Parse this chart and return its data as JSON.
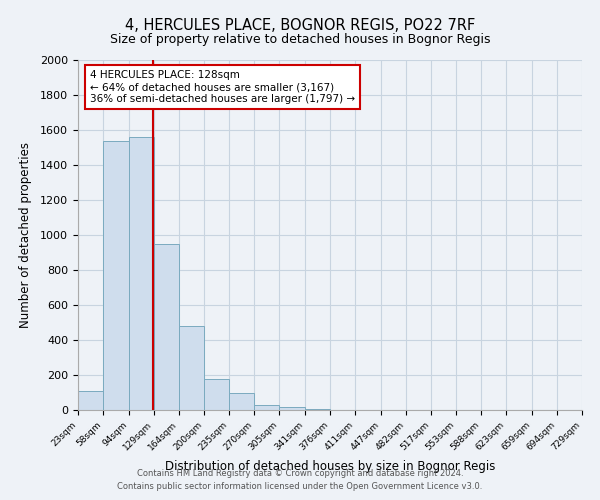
{
  "title": "4, HERCULES PLACE, BOGNOR REGIS, PO22 7RF",
  "subtitle": "Size of property relative to detached houses in Bognor Regis",
  "xlabel": "Distribution of detached houses by size in Bognor Regis",
  "ylabel": "Number of detached properties",
  "bar_edges": [
    23,
    58,
    94,
    129,
    164,
    200,
    235,
    270,
    305,
    341,
    376,
    411,
    447,
    482,
    517,
    553,
    588,
    623,
    659,
    694,
    729
  ],
  "bar_heights": [
    110,
    1540,
    1560,
    950,
    480,
    180,
    95,
    30,
    15,
    8,
    0,
    0,
    0,
    0,
    0,
    0,
    0,
    0,
    0,
    0
  ],
  "bar_color": "#cfdded",
  "bar_edge_color": "#7aaabf",
  "property_line_x": 128,
  "annotation_title": "4 HERCULES PLACE: 128sqm",
  "annotation_line1": "← 64% of detached houses are smaller (3,167)",
  "annotation_line2": "36% of semi-detached houses are larger (1,797) →",
  "annotation_box_color": "#ffffff",
  "annotation_box_edge_color": "#cc0000",
  "red_line_color": "#cc0000",
  "ylim": [
    0,
    2000
  ],
  "yticks": [
    0,
    200,
    400,
    600,
    800,
    1000,
    1200,
    1400,
    1600,
    1800,
    2000
  ],
  "grid_color": "#c8d4e0",
  "footer_line1": "Contains HM Land Registry data © Crown copyright and database right 2024.",
  "footer_line2": "Contains public sector information licensed under the Open Government Licence v3.0.",
  "bg_color": "#eef2f7"
}
